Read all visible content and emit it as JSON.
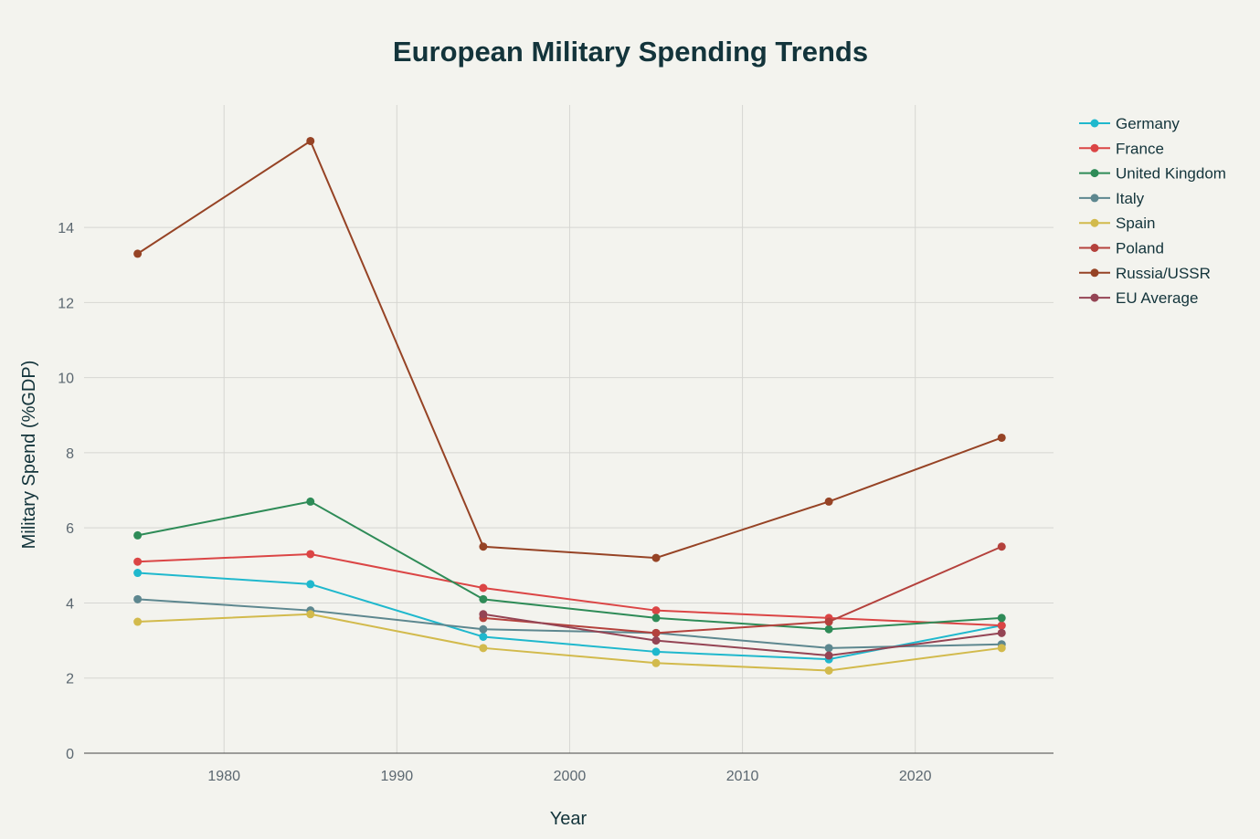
{
  "chart_data": {
    "type": "line",
    "title": "European Military Spending Trends",
    "xlabel": "Year",
    "ylabel": "Military Spend (%GDP)",
    "x": [
      1975,
      1985,
      1995,
      2005,
      2015,
      2025
    ],
    "xlim": [
      1971.9,
      2028.0
    ],
    "ylim": [
      0,
      17.26
    ],
    "xticks": [
      1980,
      1990,
      2000,
      2010,
      2020
    ],
    "yticks": [
      0,
      2,
      4,
      6,
      8,
      10,
      12,
      14
    ],
    "grid": true,
    "legend_position": "right",
    "series": [
      {
        "name": "Germany",
        "color": "#1FB8CD",
        "values": [
          4.8,
          4.5,
          3.1,
          2.7,
          2.5,
          3.4
        ]
      },
      {
        "name": "France",
        "color": "#DB4545",
        "values": [
          5.1,
          5.3,
          4.4,
          3.8,
          3.6,
          3.4
        ]
      },
      {
        "name": "United Kingdom",
        "color": "#2E8B57",
        "values": [
          5.8,
          6.7,
          4.1,
          3.6,
          3.3,
          3.6
        ]
      },
      {
        "name": "Italy",
        "color": "#5D878F",
        "values": [
          4.1,
          3.8,
          3.3,
          3.2,
          2.8,
          2.9
        ]
      },
      {
        "name": "Spain",
        "color": "#D2BA4C",
        "values": [
          3.5,
          3.7,
          2.8,
          2.4,
          2.2,
          2.8
        ]
      },
      {
        "name": "Poland",
        "color": "#B4413C",
        "values": [
          null,
          null,
          3.6,
          3.2,
          3.5,
          5.5
        ]
      },
      {
        "name": "Russia/USSR",
        "color": "#964325",
        "values": [
          13.3,
          16.3,
          5.5,
          5.2,
          6.7,
          8.4
        ]
      },
      {
        "name": "EU Average",
        "color": "#944454",
        "values": [
          null,
          null,
          3.7,
          3.0,
          2.6,
          3.2
        ]
      }
    ]
  }
}
